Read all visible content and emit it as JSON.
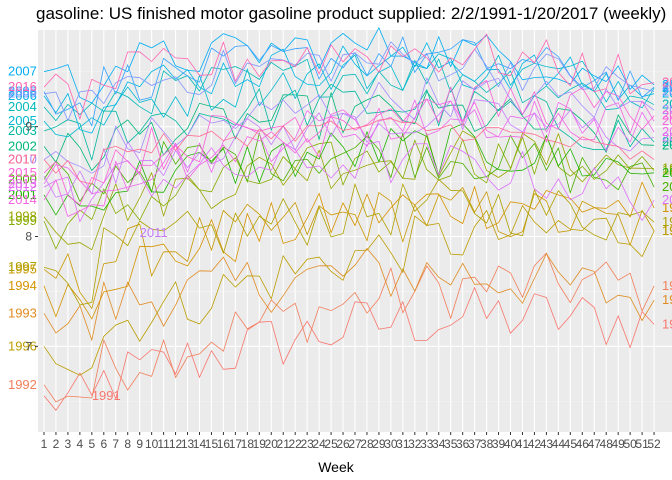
{
  "chart_data": {
    "type": "line",
    "title": "gasoline: US finished motor gasoline product supplied: 2/2/1991-1/20/2017 (weekly)",
    "xlabel": "Week",
    "ylabel": "",
    "x_ticks": [
      "1",
      "2",
      "3",
      "4",
      "5",
      "6",
      "7",
      "8",
      "9",
      "10",
      "11",
      "12",
      "13",
      "14",
      "15",
      "16",
      "17",
      "18",
      "19",
      "20",
      "21",
      "22",
      "23",
      "24",
      "25",
      "26",
      "27",
      "28",
      "29",
      "30",
      "31",
      "32",
      "33",
      "34",
      "35",
      "36",
      "37",
      "38",
      "39",
      "40",
      "41",
      "42",
      "43",
      "44",
      "45",
      "46",
      "47",
      "48",
      "49",
      "50",
      "51",
      "52"
    ],
    "y_ticks": [
      7,
      8,
      9
    ],
    "ylim": [
      6.22,
      9.88
    ],
    "xlim": [
      0.5,
      53.5
    ],
    "grid": true,
    "background": "#ebebeb",
    "gridColor": "#ffffff",
    "series": [
      {
        "name": "1991",
        "color": "#F8766D",
        "start": 6.55,
        "end": 7.2,
        "noise": 0.28,
        "labelStartWeek": 5,
        "labelStartY": 6.55
      },
      {
        "name": "1992",
        "color": "#F27E5A",
        "start": 6.65,
        "end": 7.55,
        "noise": 0.28
      },
      {
        "name": "1993",
        "color": "#E08B20",
        "start": 7.3,
        "end": 7.42,
        "noise": 0.28
      },
      {
        "name": "1994",
        "color": "#D69300",
        "start": 7.55,
        "end": 8.26,
        "noise": 0.26
      },
      {
        "name": "1995",
        "color": "#C99800",
        "start": 7.7,
        "end": 8.05,
        "noise": 0.26
      },
      {
        "name": "1996",
        "color": "#BB9D00",
        "start": 7.0,
        "end": 8.05,
        "noise": 0.26
      },
      {
        "name": "1997",
        "color": "#AFA100",
        "start": 7.72,
        "end": 8.13,
        "noise": 0.26
      },
      {
        "name": "1998",
        "color": "#9AA600",
        "start": 8.18,
        "end": 8.62,
        "noise": 0.24
      },
      {
        "name": "1999",
        "color": "#86AC00",
        "start": 8.14,
        "end": 8.6,
        "noise": 0.24
      },
      {
        "name": "2000",
        "color": "#4CB000",
        "start": 8.52,
        "end": 8.45,
        "noise": 0.24
      },
      {
        "name": "2001",
        "color": "#1FB300",
        "start": 8.38,
        "end": 8.58,
        "noise": 0.24
      },
      {
        "name": "2002",
        "color": "#00B67A",
        "start": 8.82,
        "end": 8.83,
        "noise": 0.22
      },
      {
        "name": "2003",
        "color": "#00B8A0",
        "start": 8.96,
        "end": 8.86,
        "noise": 0.22
      },
      {
        "name": "2004",
        "color": "#00BAB8",
        "start": 9.18,
        "end": 9.2,
        "noise": 0.2
      },
      {
        "name": "2005",
        "color": "#00B9D0",
        "start": 9.05,
        "end": 9.35,
        "noise": 0.2
      },
      {
        "name": "2006",
        "color": "#00B5E4",
        "start": 9.28,
        "end": 9.3,
        "noise": 0.2
      },
      {
        "name": "2007",
        "color": "#00ADF4",
        "start": 9.5,
        "end": 9.38,
        "noise": 0.2
      },
      {
        "name": "2008",
        "color": "#35A2FF",
        "start": 9.32,
        "end": 9.36,
        "noise": 0.2
      },
      {
        "name": "2009",
        "color": "#7F96FF",
        "start": 9.3,
        "end": 9.32,
        "noise": 0.2
      },
      {
        "name": "2010",
        "color": "#A88BFF",
        "start": 8.7,
        "end": 9.15,
        "noise": 0.2
      },
      {
        "name": "2011",
        "color": "#C77CFF",
        "start": 8.55,
        "end": 8.9,
        "noise": 0.2,
        "labelStartWeek": 9,
        "labelStartY": 8.03
      },
      {
        "name": "2012",
        "color": "#DC71FA",
        "start": 8.45,
        "end": 8.33,
        "noise": 0.22
      },
      {
        "name": "2013",
        "color": "#EC68EE",
        "start": 8.48,
        "end": 8.95,
        "noise": 0.22
      },
      {
        "name": "2014",
        "color": "#F564E3",
        "start": 8.33,
        "end": 9.05,
        "noise": 0.22
      },
      {
        "name": "2015",
        "color": "#FC61D5",
        "start": 8.58,
        "end": 9.1,
        "noise": 0.22
      },
      {
        "name": "2016",
        "color": "#FF64B0",
        "start": 9.36,
        "end": 9.4,
        "noise": 0.22
      },
      {
        "name": "2017",
        "color": "#FF6C91",
        "start": 8.7,
        "end": 8.7,
        "noise": 0.1
      }
    ]
  }
}
